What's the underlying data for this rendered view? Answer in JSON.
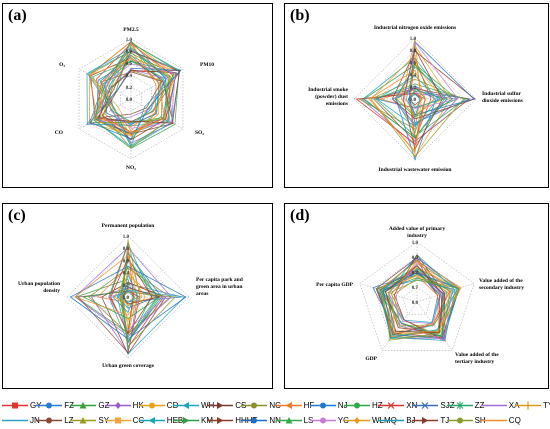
{
  "panels": [
    {
      "tag": "(a)"
    },
    {
      "tag": "(b)"
    },
    {
      "tag": "(c)"
    },
    {
      "tag": "(d)"
    }
  ],
  "chart_data": [
    {
      "type": "radar",
      "panel": "(a)",
      "axes": [
        "PM2.5",
        "PM10",
        "SO2",
        "NO2",
        "CO",
        "O3"
      ],
      "axis_display": [
        "PM2.5",
        "PM10",
        "SO₂",
        "NO₂",
        "CO",
        "O₃"
      ],
      "ticks": [
        "1.0",
        "0.8",
        "0.6",
        "0.4",
        "0.2",
        "0.0"
      ],
      "rlim": [
        0,
        1
      ],
      "grid": true
    },
    {
      "type": "radar",
      "panel": "(b)",
      "axes": [
        "Industrial nitrogen oxide emissions",
        "Industrial sulfur dioxide emissions",
        "Industrial wastewater emission",
        "Industrial smoke (powder) dust emissions"
      ],
      "ticks": [
        "1.0",
        "0.8",
        "0.6",
        "0.4",
        "0.2",
        "0.0"
      ],
      "rlim": [
        0,
        1
      ],
      "grid": true
    },
    {
      "type": "radar",
      "panel": "(c)",
      "axes": [
        "Permanent population",
        "Per capita park and green area in urban areas",
        "Urban green coverage",
        "Urban population density"
      ],
      "ticks": [
        "1.0",
        "0.8",
        "0.6",
        "0.4",
        "0.2",
        "0.0"
      ],
      "rlim": [
        0,
        1
      ],
      "grid": true
    },
    {
      "type": "radar",
      "panel": "(d)",
      "axes": [
        "Added value of primary industry",
        "Value added of the secondary industry",
        "Value added of the tertiary industry",
        "GDP",
        "Per capita GDP"
      ],
      "ticks": [
        "1.0",
        "0.9",
        "0.8",
        "0.7",
        "0.6"
      ],
      "rlim": [
        0.5,
        1
      ],
      "grid": true
    }
  ],
  "legend": [
    {
      "code": "GY",
      "color": "#e0342f",
      "marker": "square"
    },
    {
      "code": "FZ",
      "color": "#2a7bd4",
      "marker": "circle"
    },
    {
      "code": "GZ",
      "color": "#3a9e3f",
      "marker": "triangle"
    },
    {
      "code": "HK",
      "color": "#9a5fc8",
      "marker": "diamond"
    },
    {
      "code": "CD",
      "color": "#e8a21a",
      "marker": "circle"
    },
    {
      "code": "WH",
      "color": "#1fa7b8",
      "marker": "triangle-left"
    },
    {
      "code": "CS",
      "color": "#7a3b2e",
      "marker": "triangle-right"
    },
    {
      "code": "NC",
      "color": "#8a8f2a",
      "marker": "circle"
    },
    {
      "code": "HF",
      "color": "#f07a2a",
      "marker": "triangle-left"
    },
    {
      "code": "NJ",
      "color": "#1f78d1",
      "marker": "circle"
    },
    {
      "code": "HZ",
      "color": "#2fa84a",
      "marker": "circle"
    },
    {
      "code": "XN",
      "color": "#d9342b",
      "marker": "x"
    },
    {
      "code": "SJZ",
      "color": "#3b6fb6",
      "marker": "x"
    },
    {
      "code": "ZZ",
      "color": "#27a76d",
      "marker": "asterisk"
    },
    {
      "code": "XA",
      "color": "#a36bd6",
      "marker": "line"
    },
    {
      "code": "TY",
      "color": "#d99a1c",
      "marker": "plus"
    },
    {
      "code": "JN",
      "color": "#2aa3c4",
      "marker": "line"
    },
    {
      "code": "LZ",
      "color": "#8a4a3a",
      "marker": "circle"
    },
    {
      "code": "SY",
      "color": "#9c9a24",
      "marker": "triangle"
    },
    {
      "code": "CC",
      "color": "#f3a33a",
      "marker": "square"
    },
    {
      "code": "HEB",
      "color": "#1aa6b2",
      "marker": "triangle-left"
    },
    {
      "code": "KM",
      "color": "#2f9e44",
      "marker": "triangle-right"
    },
    {
      "code": "HHHT",
      "color": "#8c3b2a",
      "marker": "triangle-right"
    },
    {
      "code": "NN",
      "color": "#1c6ec7",
      "marker": "circle"
    },
    {
      "code": "LS",
      "color": "#3aa84f",
      "marker": "triangle"
    },
    {
      "code": "YC",
      "color": "#c77bd8",
      "marker": "circle"
    },
    {
      "code": "WLMQ",
      "color": "#e49a1d",
      "marker": "diamond"
    },
    {
      "code": "BJ",
      "color": "#1f9ab3",
      "marker": "line"
    },
    {
      "code": "TJ",
      "color": "#8b3d2c",
      "marker": "triangle-right"
    },
    {
      "code": "SH",
      "color": "#8a9a2c",
      "marker": "circle"
    },
    {
      "code": "CQ",
      "color": "#f08a2a",
      "marker": "line"
    }
  ]
}
